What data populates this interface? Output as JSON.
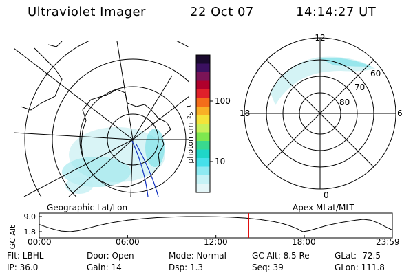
{
  "header": {
    "instrument": "Ultraviolet Imager",
    "date": "22 Oct 07",
    "time": "14:14:27 UT"
  },
  "left_panel": {
    "caption": "Geographic Lat/Lon"
  },
  "right_panel": {
    "caption": "Apex MLat/MLT",
    "mlt_labels": {
      "top": "12",
      "left": "18",
      "right": "6",
      "bottom": "0"
    },
    "lat_labels": [
      "60",
      "70",
      "80"
    ]
  },
  "colorbar": {
    "label": "photon cm⁻²s⁻¹",
    "ticks": [
      "100",
      "10"
    ],
    "colors": [
      "#1a0a2e",
      "#3b1060",
      "#7a1457",
      "#b0002c",
      "#e0202a",
      "#f46d1a",
      "#f9b026",
      "#f4e33a",
      "#c8f05a",
      "#7ee84f",
      "#39d98f",
      "#1fd6c8",
      "#45e0ea",
      "#8feaf2",
      "#c6f2f6",
      "#e4f6f8"
    ]
  },
  "chart_data": {
    "type": "line",
    "title": "",
    "ylabel": "GC Alt",
    "yticks": [
      "9.0",
      "1.8"
    ],
    "ylim": [
      1.8,
      9.0
    ],
    "xlim": [
      "00:00",
      "23:59"
    ],
    "xticks": [
      "00:00",
      "06:00",
      "12:00",
      "18:00",
      "23:59"
    ],
    "series": [
      {
        "x": [
          "00:00",
          "00:30",
          "01:00",
          "01:30",
          "02:06",
          "02:40",
          "03:20",
          "04:00",
          "05:00",
          "06:00",
          "07:00",
          "08:00",
          "09:00",
          "10:00",
          "11:00",
          "12:00",
          "13:00",
          "14:00",
          "15:00",
          "16:00",
          "16:30",
          "17:00",
          "17:30",
          "17:54",
          "18:20",
          "18:50",
          "19:30",
          "20:30",
          "21:30",
          "22:00",
          "22:30",
          "23:00",
          "23:30",
          "23:59"
        ],
        "y": [
          5.2,
          4.0,
          2.9,
          2.1,
          1.8,
          2.3,
          3.5,
          4.7,
          6.2,
          7.3,
          8.0,
          8.5,
          8.8,
          9.0,
          9.0,
          8.9,
          8.7,
          8.3,
          7.6,
          6.5,
          5.7,
          4.6,
          3.3,
          1.8,
          2.3,
          3.3,
          4.7,
          6.2,
          7.3,
          7.7,
          7.3,
          6.0,
          4.2,
          2.6
        ]
      }
    ],
    "marker_time": "14:14"
  },
  "status": {
    "filter": "Flt: LBHL",
    "ip": "IP: 36.0",
    "door": "Door: Open",
    "gain": "Gain: 14",
    "mode": "Mode: Normal",
    "dsp": "Dsp:    1.3",
    "gc_alt": "GC Alt: 8.5 Re",
    "seq": "Seq: 39",
    "glat": "GLat: -72.5",
    "glon": "GLon: 111.8"
  }
}
